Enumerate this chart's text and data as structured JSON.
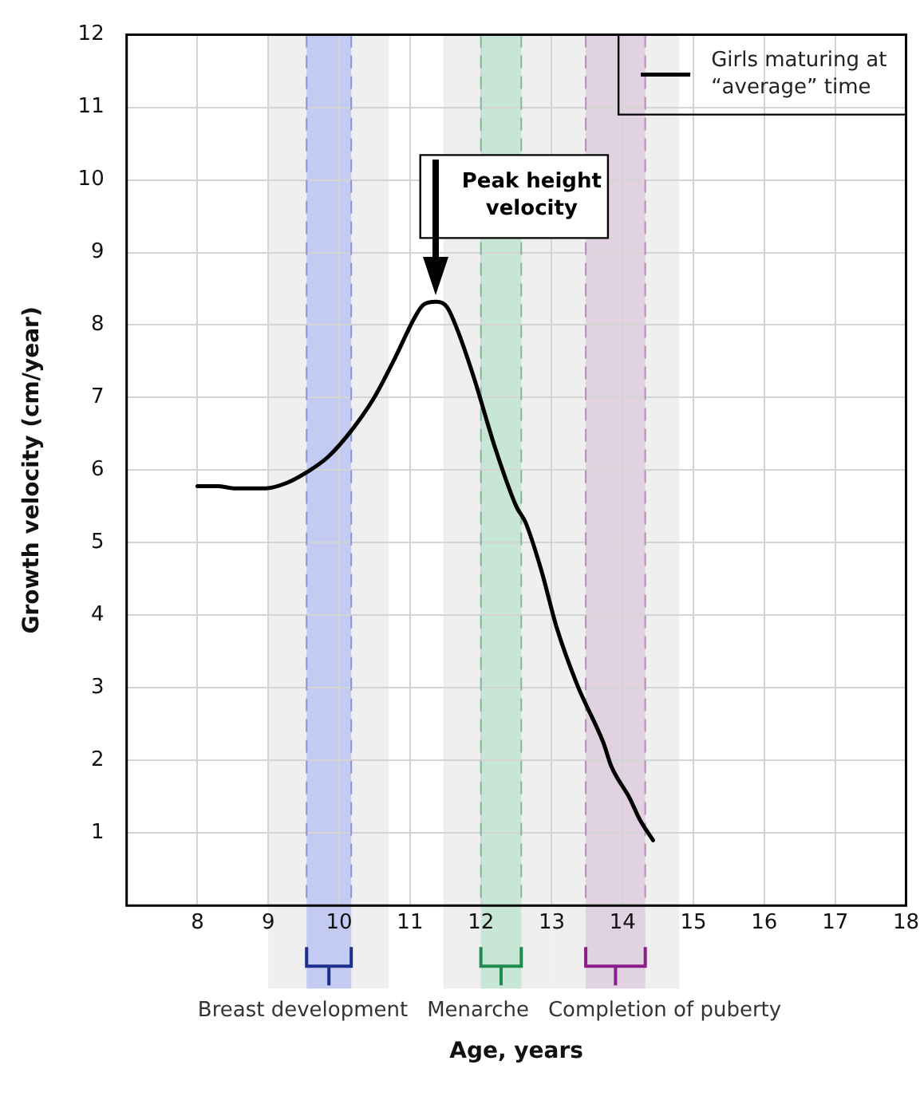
{
  "chart_data": {
    "type": "line",
    "xlabel": "Age, years",
    "ylabel": "Growth velocity (cm/year)",
    "x": [
      8,
      8.29,
      8.51,
      8.96,
      9.25,
      9.54,
      9.84,
      10.2,
      10.5,
      10.79,
      11.08,
      11.19,
      11.37,
      11.52,
      11.67,
      11.9,
      12.2,
      12.5,
      12.63,
      12.85,
      13.07,
      13.36,
      13.73,
      13.84,
      14.1,
      14.24,
      14.43
    ],
    "series": [
      {
        "name": "Girls maturing at “average” time",
        "color": "#000000",
        "values": [
          5.78,
          5.78,
          5.75,
          5.75,
          5.82,
          5.97,
          6.18,
          6.58,
          7.01,
          7.55,
          8.13,
          8.28,
          8.32,
          8.25,
          7.93,
          7.28,
          6.31,
          5.5,
          5.28,
          4.63,
          3.83,
          3.04,
          2.24,
          1.92,
          1.48,
          1.19,
          0.9
        ]
      }
    ],
    "xlim": [
      7,
      18
    ],
    "xticks": [
      8,
      9,
      10,
      11,
      12,
      13,
      14,
      15,
      16,
      17,
      18
    ],
    "ylim": [
      0,
      12
    ],
    "yticks": [
      1,
      2,
      3,
      4,
      5,
      6,
      7,
      8,
      9,
      10,
      11,
      12
    ],
    "bands": [
      {
        "axis": "x",
        "from": 9,
        "to": 10.7,
        "color": "#efefef"
      },
      {
        "axis": "x",
        "from": 11.47,
        "to": 13,
        "color": "#efefef"
      },
      {
        "axis": "x",
        "from": 13,
        "to": 14.8,
        "color": "#efefef"
      },
      {
        "axis": "x",
        "from": 9.54,
        "to": 10.17,
        "color": "#c3cbf3"
      },
      {
        "axis": "x",
        "from": 12,
        "to": 12.57,
        "color": "#c8e6d6"
      },
      {
        "axis": "x",
        "from": 13.48,
        "to": 14.32,
        "color": "#e0d2e0"
      }
    ],
    "ref_lines": [
      {
        "axis": "x",
        "value": 9.54,
        "color": "#8a95d6",
        "line_style": "dashed"
      },
      {
        "axis": "x",
        "value": 10.17,
        "color": "#8a95d6",
        "line_style": "dashed"
      },
      {
        "axis": "x",
        "value": 12,
        "color": "#7fb89a",
        "line_style": "dashed"
      },
      {
        "axis": "x",
        "value": 12.57,
        "color": "#7fb89a",
        "line_style": "dashed"
      },
      {
        "axis": "x",
        "value": 13.48,
        "color": "#b58fb5",
        "line_style": "dashed"
      },
      {
        "axis": "x",
        "value": 14.32,
        "color": "#b58fb5",
        "line_style": "dashed"
      }
    ],
    "annotations": [
      "Peak height velocity",
      "Breast development",
      "Menarche",
      "Completion of puberty"
    ],
    "grid": true,
    "legend": "top right",
    "marker": "none",
    "line_style": "solid"
  }
}
